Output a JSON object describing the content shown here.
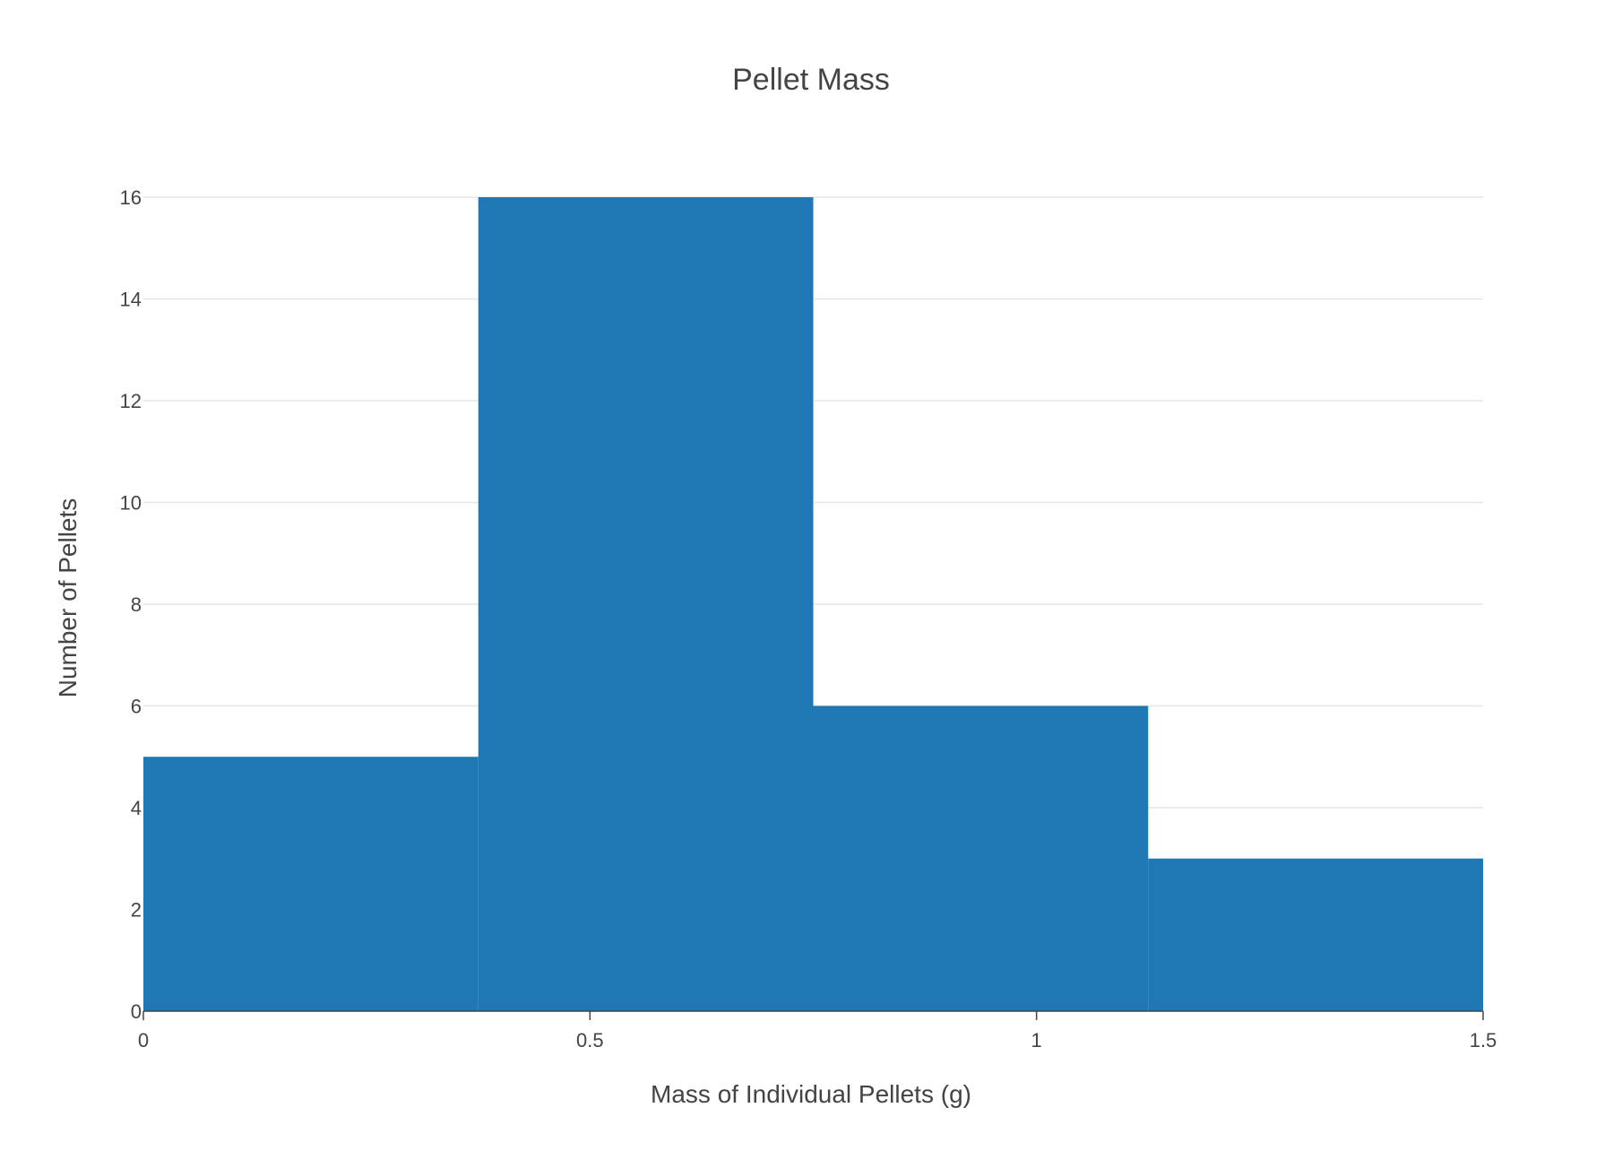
{
  "chart_data": {
    "type": "bar",
    "subtype": "histogram",
    "title": "Pellet Mass",
    "xlabel": "Mass of Individual Pellets (g)",
    "ylabel": "Number of Pellets",
    "xlim": [
      0,
      1.5
    ],
    "ylim": [
      0,
      16
    ],
    "x_ticks": [
      0,
      0.5,
      1,
      1.5
    ],
    "x_tick_labels": [
      "0",
      "0.5",
      "1",
      "1.5"
    ],
    "y_ticks": [
      0,
      2,
      4,
      6,
      8,
      10,
      12,
      14,
      16
    ],
    "y_tick_labels": [
      "0",
      "2",
      "4",
      "6",
      "8",
      "10",
      "12",
      "14",
      "16"
    ],
    "grid": true,
    "bar_color": "#1f77b4",
    "bins": [
      {
        "x0": 0,
        "x1": 0.375,
        "count": 5
      },
      {
        "x0": 0.375,
        "x1": 0.75,
        "count": 16
      },
      {
        "x0": 0.75,
        "x1": 1.125,
        "count": 6
      },
      {
        "x0": 1.125,
        "x1": 1.5,
        "count": 3
      }
    ]
  }
}
